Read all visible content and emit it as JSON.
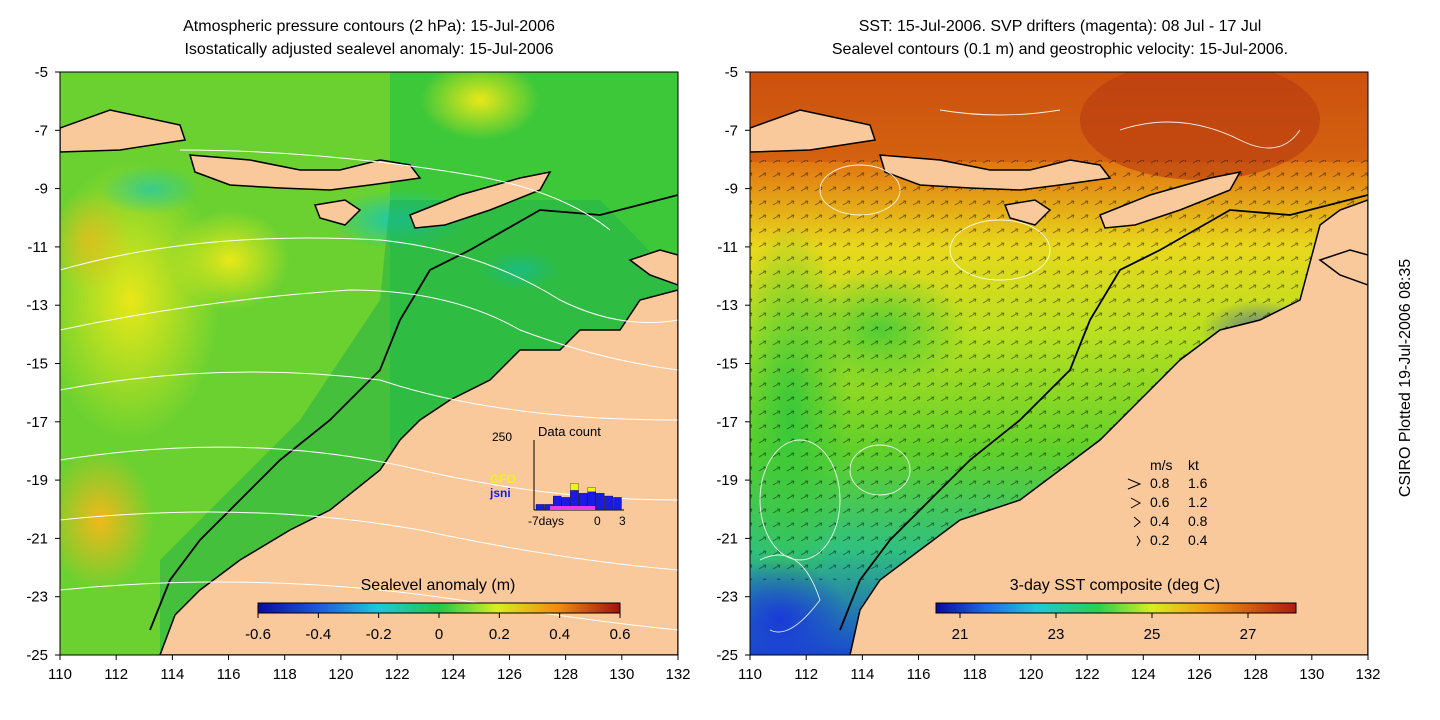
{
  "left_panel": {
    "title_line1": "Atmospheric pressure contours (2 hPa): 15-Jul-2006",
    "title_line2": "Isostatically adjusted sealevel anomaly: 15-Jul-2006",
    "colorbar_label": "Sealevel anomaly (m)",
    "colorbar_ticks": [
      "-0.6",
      "-0.4",
      "-0.2",
      "0",
      "0.2",
      "0.4",
      "0.6"
    ],
    "colorbar_range": [
      -0.6,
      0.6
    ],
    "inset": {
      "count_label": "250",
      "title": "Data count",
      "legend": [
        {
          "name": "GFO",
          "color": "#f2f21a"
        },
        {
          "name": "jsni",
          "color": "#1a1ae6"
        }
      ],
      "x_ticks": [
        "-7days",
        "0",
        "3"
      ],
      "bars_gfo": [
        0,
        0,
        40,
        30,
        95,
        55,
        80,
        0,
        0,
        0
      ],
      "bars_jsni": [
        20,
        20,
        50,
        45,
        70,
        60,
        65,
        60,
        50,
        45
      ]
    }
  },
  "right_panel": {
    "title_line1": "SST: 15-Jul-2006. SVP drifters (magenta): 08 Jul - 17 Jul",
    "title_line2": "Sealevel contours (0.1 m) and geostrophic velocity: 15-Jul-2006.",
    "colorbar_label": "3-day SST composite (deg C)",
    "colorbar_ticks": [
      "21",
      "23",
      "25",
      "27"
    ],
    "colorbar_range": [
      20.5,
      28
    ],
    "speed_legend": {
      "header": [
        "m/s",
        "kt"
      ],
      "rows": [
        [
          "0.8",
          "1.6"
        ],
        [
          "0.6",
          "1.2"
        ],
        [
          "0.4",
          "0.8"
        ],
        [
          "0.2",
          "0.4"
        ]
      ]
    }
  },
  "axes": {
    "x_ticks": [
      "110",
      "112",
      "114",
      "116",
      "118",
      "120",
      "122",
      "124",
      "126",
      "128",
      "130",
      "132"
    ],
    "y_ticks": [
      "-5",
      "-7",
      "-9",
      "-11",
      "-13",
      "-15",
      "-17",
      "-19",
      "-21",
      "-23",
      "-25"
    ]
  },
  "credit": "CSIRO Plotted 19-Jul-2006 08:35",
  "colors": {
    "land": "#f9c89b",
    "ocean_anomaly": "#1fc64a",
    "sst_warm": "#d85a10",
    "sst_mid": "#9ad81c"
  }
}
